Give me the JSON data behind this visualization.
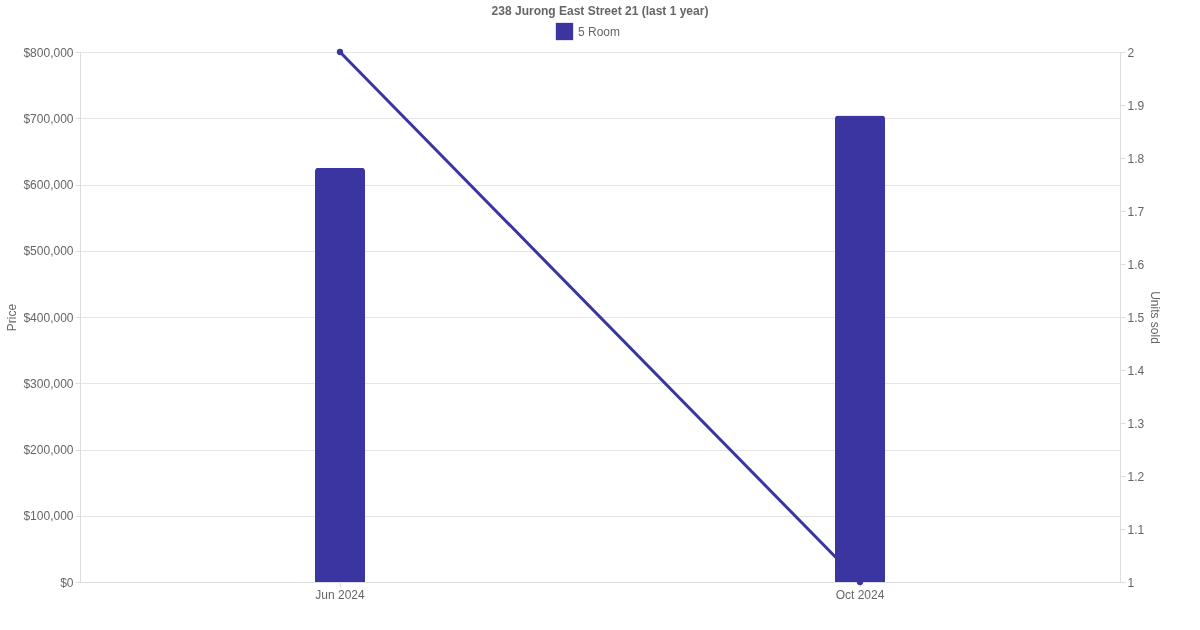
{
  "chart_data": {
    "type": "bar",
    "title": "238 Jurong East Street 21 (last 1 year)",
    "categories": [
      "Jun 2024",
      "Oct 2024"
    ],
    "series": [
      {
        "name": "5 Room",
        "color": "#3a35a0",
        "values": [
          625000,
          704000
        ]
      },
      {
        "type": "line",
        "axis": "y2",
        "color": "#3a35a0",
        "values": [
          2,
          1
        ],
        "marker": "circle"
      }
    ],
    "ylabel": "Price",
    "y2label": "Units sold",
    "ylim": [
      0,
      800000
    ],
    "yticks": [
      {
        "value": 0,
        "label": "$0"
      },
      {
        "value": 100000,
        "label": "$100,000"
      },
      {
        "value": 200000,
        "label": "$200,000"
      },
      {
        "value": 300000,
        "label": "$300,000"
      },
      {
        "value": 400000,
        "label": "$400,000"
      },
      {
        "value": 500000,
        "label": "$500,000"
      },
      {
        "value": 600000,
        "label": "$600,000"
      },
      {
        "value": 700000,
        "label": "$700,000"
      },
      {
        "value": 800000,
        "label": "$800,000"
      }
    ],
    "y2lim": [
      1,
      2
    ],
    "y2ticks": [
      1,
      1.1,
      1.2,
      1.3,
      1.4,
      1.5,
      1.6,
      1.7,
      1.8,
      1.9,
      2
    ],
    "grid": "y",
    "legend": "top"
  }
}
